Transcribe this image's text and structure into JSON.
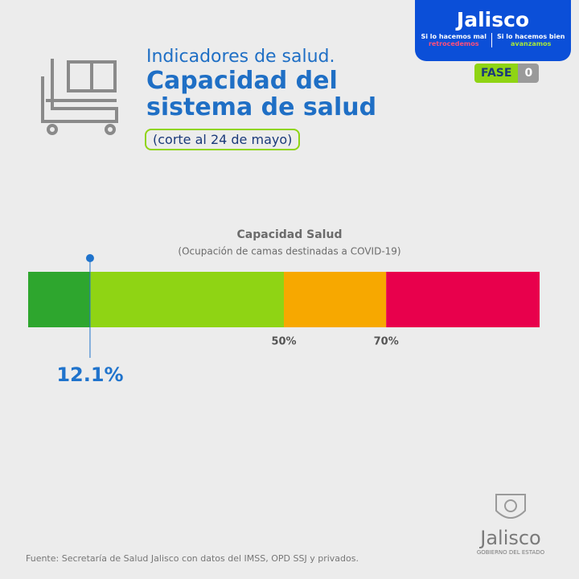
{
  "header": {
    "kicker": "Indicadores de salud.",
    "title": "Capacidad del sistema de salud",
    "date": "(corte al 24 de mayo)",
    "phase_label": "FASE",
    "phase_value": "0"
  },
  "logo": {
    "name": "Jalisco",
    "left_top": "Si lo hacemos mal",
    "left_bottom": "retrocedemos",
    "right_top": "Si lo hacemos bien",
    "right_bottom": "avanzamos"
  },
  "chart_data": {
    "type": "gauge",
    "title": "Capacidad Salud",
    "subtitle": "(Ocupación de camas destinadas a COVID-19)",
    "xlim": [
      0,
      100
    ],
    "xticks": [
      {
        "value": 50,
        "label": "50%"
      },
      {
        "value": 70,
        "label": "70%"
      }
    ],
    "zones": [
      {
        "start": 0,
        "end": 50,
        "color": "#8fd414"
      },
      {
        "start": 50,
        "end": 70,
        "color": "#f7a800"
      },
      {
        "start": 70,
        "end": 100,
        "color": "#e8004c"
      }
    ],
    "value": 12.1,
    "value_label": "12.1%",
    "value_color": "#2ea62e",
    "marker_color": "#1f73cc"
  },
  "footer": {
    "source": "Fuente: Secretaría de Salud Jalisco con datos del IMSS, OPD SSJ y privados.",
    "seal_name": "Jalisco",
    "seal_sub": "GOBIERNO DEL ESTADO"
  }
}
